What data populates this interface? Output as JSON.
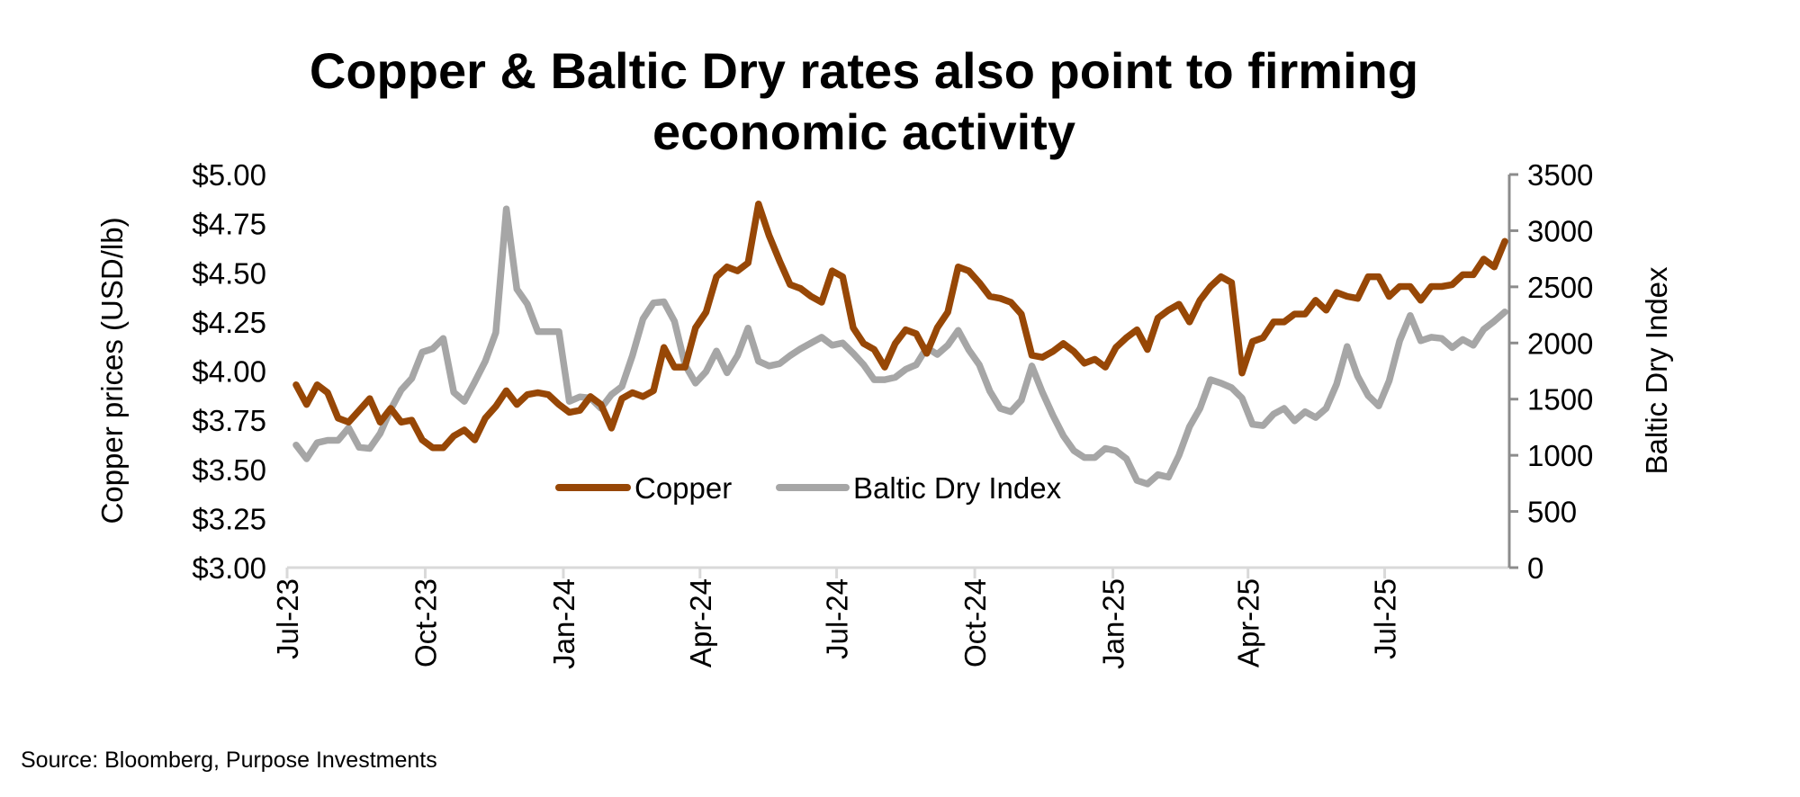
{
  "chart_data": {
    "type": "line",
    "title": [
      "Copper & Baltic Dry rates also point to firming",
      "economic activity"
    ],
    "source": "Source: Bloomberg, Purpose Investments",
    "ylabel": "Copper prices (USD/lb)",
    "y2label": "Baltic Dry Index",
    "ylim": [
      3.0,
      5.0
    ],
    "y2lim": [
      0,
      3500
    ],
    "ytick_labels": [
      "$3.00",
      "$3.25",
      "$3.50",
      "$3.75",
      "$4.00",
      "$4.25",
      "$4.50",
      "$4.75",
      "$5.00"
    ],
    "y2tick_labels": [
      "0",
      "500",
      "1000",
      "1500",
      "2000",
      "2500",
      "3000",
      "3500"
    ],
    "xtick_labels": [
      "Jul-23",
      "Oct-23",
      "Jan-24",
      "Apr-24",
      "Jul-24",
      "Oct-24",
      "Jan-25",
      "Apr-25",
      "Jul-25"
    ],
    "xtick_dates": [
      "2023-07-01",
      "2023-10-01",
      "2024-01-01",
      "2024-04-01",
      "2024-07-01",
      "2024-10-01",
      "2025-01-01",
      "2025-04-01",
      "2025-07-01"
    ],
    "grid": false,
    "legend_position": "center",
    "x": [
      "2023-07-07",
      "2023-07-14",
      "2023-07-21",
      "2023-07-28",
      "2023-08-04",
      "2023-08-11",
      "2023-08-18",
      "2023-08-25",
      "2023-09-01",
      "2023-09-08",
      "2023-09-15",
      "2023-09-22",
      "2023-09-29",
      "2023-10-06",
      "2023-10-13",
      "2023-10-20",
      "2023-10-27",
      "2023-11-03",
      "2023-11-10",
      "2023-11-17",
      "2023-11-24",
      "2023-12-01",
      "2023-12-08",
      "2023-12-15",
      "2023-12-22",
      "2023-12-29",
      "2024-01-05",
      "2024-01-12",
      "2024-01-19",
      "2024-01-26",
      "2024-02-02",
      "2024-02-09",
      "2024-02-16",
      "2024-02-23",
      "2024-03-01",
      "2024-03-08",
      "2024-03-15",
      "2024-03-22",
      "2024-03-29",
      "2024-04-05",
      "2024-04-12",
      "2024-04-19",
      "2024-04-26",
      "2024-05-03",
      "2024-05-10",
      "2024-05-17",
      "2024-05-24",
      "2024-05-31",
      "2024-06-07",
      "2024-06-14",
      "2024-06-21",
      "2024-06-28",
      "2024-07-05",
      "2024-07-12",
      "2024-07-19",
      "2024-07-26",
      "2024-08-02",
      "2024-08-09",
      "2024-08-16",
      "2024-08-23",
      "2024-08-30",
      "2024-09-06",
      "2024-09-13",
      "2024-09-20",
      "2024-09-27",
      "2024-10-04",
      "2024-10-11",
      "2024-10-18",
      "2024-10-25",
      "2024-11-01",
      "2024-11-08",
      "2024-11-15",
      "2024-11-22",
      "2024-11-29",
      "2024-12-06",
      "2024-12-13",
      "2024-12-20",
      "2024-12-27",
      "2025-01-03",
      "2025-01-10",
      "2025-01-17",
      "2025-01-24",
      "2025-01-31",
      "2025-02-07",
      "2025-02-14",
      "2025-02-21",
      "2025-02-28",
      "2025-03-07",
      "2025-03-14",
      "2025-03-21",
      "2025-03-28",
      "2025-04-04",
      "2025-04-11",
      "2025-04-18",
      "2025-04-25",
      "2025-05-02",
      "2025-05-09",
      "2025-05-16",
      "2025-05-23",
      "2025-05-30",
      "2025-06-06",
      "2025-06-13",
      "2025-06-20",
      "2025-06-27",
      "2025-07-04",
      "2025-07-11",
      "2025-07-18",
      "2025-07-25",
      "2025-08-01",
      "2025-08-08",
      "2025-08-15",
      "2025-08-22",
      "2025-08-29",
      "2025-09-05",
      "2025-09-12",
      "2025-09-19"
    ],
    "series": [
      {
        "name": "Copper",
        "axis": "left",
        "color": "#974706",
        "values": [
          3.93,
          3.83,
          3.93,
          3.89,
          3.76,
          3.74,
          3.8,
          3.86,
          3.74,
          3.81,
          3.74,
          3.75,
          3.65,
          3.61,
          3.61,
          3.67,
          3.7,
          3.65,
          3.76,
          3.82,
          3.9,
          3.83,
          3.88,
          3.89,
          3.88,
          3.83,
          3.79,
          3.8,
          3.87,
          3.83,
          3.71,
          3.86,
          3.89,
          3.87,
          3.9,
          4.12,
          4.02,
          4.02,
          4.22,
          4.3,
          4.48,
          4.53,
          4.51,
          4.55,
          4.85,
          4.69,
          4.56,
          4.44,
          4.42,
          4.38,
          4.35,
          4.51,
          4.48,
          4.22,
          4.14,
          4.11,
          4.02,
          4.14,
          4.21,
          4.19,
          4.09,
          4.22,
          4.3,
          4.53,
          4.51,
          4.45,
          4.38,
          4.37,
          4.35,
          4.29,
          4.08,
          4.07,
          4.1,
          4.14,
          4.1,
          4.04,
          4.06,
          4.02,
          4.12,
          4.17,
          4.21,
          4.11,
          4.27,
          4.31,
          4.34,
          4.25,
          4.36,
          4.43,
          4.48,
          4.45,
          3.99,
          4.15,
          4.17,
          4.25,
          4.25,
          4.29,
          4.29,
          4.36,
          4.31,
          4.4,
          4.38,
          4.37,
          4.48,
          4.48,
          4.38,
          4.43,
          4.43,
          4.36,
          4.43,
          4.43,
          4.44,
          4.49,
          4.49,
          4.57,
          4.53,
          4.66
        ]
      },
      {
        "name": "Baltic Dry Index",
        "axis": "right",
        "color": "#a6a6a6",
        "values": [
          1092,
          969,
          1112,
          1133,
          1133,
          1245,
          1071,
          1061,
          1194,
          1408,
          1582,
          1684,
          1918,
          1949,
          2041,
          1561,
          1480,
          1653,
          1837,
          2092,
          3194,
          2480,
          2347,
          2102,
          2102,
          2102,
          1480,
          1520,
          1510,
          1418,
          1541,
          1612,
          1888,
          2214,
          2357,
          2367,
          2194,
          1806,
          1643,
          1745,
          1929,
          1735,
          1888,
          2133,
          1837,
          1796,
          1816,
          1888,
          1949,
          2000,
          2051,
          1980,
          2000,
          1908,
          1806,
          1673,
          1673,
          1694,
          1765,
          1806,
          1959,
          1898,
          1980,
          2112,
          1939,
          1806,
          1571,
          1418,
          1388,
          1490,
          1796,
          1561,
          1357,
          1173,
          1041,
          980,
          980,
          1061,
          1041,
          969,
          776,
          745,
          827,
          806,
          1000,
          1255,
          1418,
          1673,
          1643,
          1602,
          1510,
          1276,
          1265,
          1367,
          1418,
          1306,
          1388,
          1337,
          1418,
          1633,
          1969,
          1704,
          1531,
          1439,
          1663,
          2020,
          2245,
          2020,
          2051,
          2041,
          1959,
          2031,
          1980,
          2122,
          2194,
          2276
        ]
      }
    ]
  }
}
